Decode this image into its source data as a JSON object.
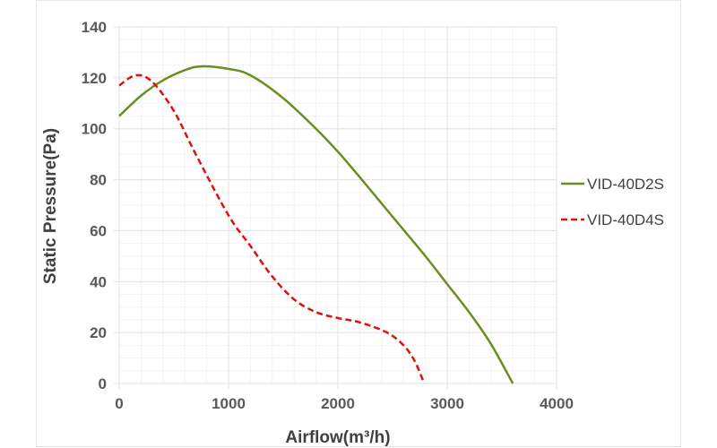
{
  "chart_data": {
    "type": "line",
    "title": "",
    "xlabel": "Airflow(m³/h)",
    "ylabel": "Static Pressure(Pa)",
    "xlim": [
      0,
      4000
    ],
    "ylim": [
      0,
      140
    ],
    "xticks": [
      0,
      1000,
      2000,
      3000,
      4000
    ],
    "yticks": [
      0,
      20,
      40,
      60,
      80,
      100,
      120,
      140
    ],
    "grid": true,
    "legend_position": "right",
    "series": [
      {
        "name": "VID-40D2S",
        "color": "#6b8e23",
        "style": "solid",
        "x": [
          0,
          200,
          400,
          600,
          750,
          1000,
          1200,
          1500,
          1800,
          2000,
          2200,
          2500,
          2800,
          3000,
          3200,
          3400,
          3600
        ],
        "y": [
          105,
          113,
          119,
          123,
          124.5,
          123.5,
          121,
          112,
          100,
          91,
          81,
          65.5,
          50,
          39,
          28,
          15.5,
          0
        ]
      },
      {
        "name": "VID-40D4S",
        "color": "#e01010",
        "style": "dashed",
        "x": [
          0,
          150,
          300,
          500,
          700,
          1000,
          1200,
          1400,
          1600,
          1800,
          2000,
          2200,
          2450,
          2600,
          2700,
          2790
        ],
        "y": [
          117,
          121,
          118.5,
          107,
          90,
          66,
          54,
          42,
          33,
          28,
          25.7,
          24,
          20,
          15,
          9,
          0
        ]
      }
    ]
  }
}
